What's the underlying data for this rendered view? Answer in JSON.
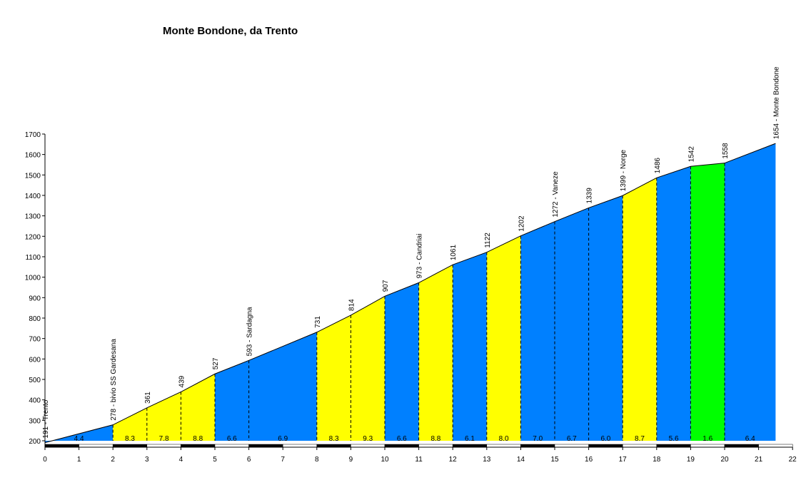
{
  "chart_data": {
    "type": "area",
    "title": "Monte Bondone, da Trento",
    "xlabel": "",
    "ylabel": "",
    "xlim": [
      0,
      22
    ],
    "ylim": [
      200,
      1700
    ],
    "x_ticks": [
      0,
      1,
      2,
      3,
      4,
      5,
      6,
      7,
      8,
      9,
      10,
      11,
      12,
      13,
      14,
      15,
      16,
      17,
      18,
      19,
      20,
      21,
      22
    ],
    "y_ticks": [
      200,
      300,
      400,
      500,
      600,
      700,
      800,
      900,
      1000,
      1100,
      1200,
      1300,
      1400,
      1500,
      1600,
      1700
    ],
    "grid": false,
    "colors": {
      "blue": "#0080ff",
      "yellow": "#ffff00",
      "green": "#00ff00",
      "line": "#000000"
    },
    "profile": [
      {
        "km": 0,
        "alt": 191
      },
      {
        "km": 2,
        "alt": 278
      },
      {
        "km": 3,
        "alt": 361
      },
      {
        "km": 4,
        "alt": 439
      },
      {
        "km": 5,
        "alt": 527
      },
      {
        "km": 6,
        "alt": 593
      },
      {
        "km": 8,
        "alt": 731
      },
      {
        "km": 9,
        "alt": 814
      },
      {
        "km": 10,
        "alt": 907
      },
      {
        "km": 11,
        "alt": 973
      },
      {
        "km": 12,
        "alt": 1061
      },
      {
        "km": 13,
        "alt": 1122
      },
      {
        "km": 14,
        "alt": 1202
      },
      {
        "km": 15,
        "alt": 1272
      },
      {
        "km": 16,
        "alt": 1339
      },
      {
        "km": 17,
        "alt": 1399
      },
      {
        "km": 18,
        "alt": 1486
      },
      {
        "km": 19,
        "alt": 1542
      },
      {
        "km": 20,
        "alt": 1558
      },
      {
        "km": 21.5,
        "alt": 1654
      }
    ],
    "point_labels": [
      {
        "km": 0,
        "label": "191 - Trento"
      },
      {
        "km": 2,
        "label": "278 - bivio  SS  Gardesana"
      },
      {
        "km": 3,
        "label": "361"
      },
      {
        "km": 4,
        "label": "439"
      },
      {
        "km": 5,
        "label": "527"
      },
      {
        "km": 6,
        "label": "593 - Sardagna"
      },
      {
        "km": 8,
        "label": "731"
      },
      {
        "km": 9,
        "label": "814"
      },
      {
        "km": 10,
        "label": "907"
      },
      {
        "km": 11,
        "label": "973 - Candriai"
      },
      {
        "km": 12,
        "label": "1061"
      },
      {
        "km": 13,
        "label": "1122"
      },
      {
        "km": 14,
        "label": "1202"
      },
      {
        "km": 15,
        "label": "1272 - Vaneze"
      },
      {
        "km": 16,
        "label": "1339"
      },
      {
        "km": 17,
        "label": "1399 - Norge"
      },
      {
        "km": 18,
        "label": "1486"
      },
      {
        "km": 19,
        "label": "1542"
      },
      {
        "km": 20,
        "label": "1558"
      },
      {
        "km": 21.5,
        "label": "1654 - Monte Bondone"
      }
    ],
    "segments": [
      {
        "from": 0,
        "to": 2,
        "gradient": "4.4",
        "color": "blue"
      },
      {
        "from": 2,
        "to": 3,
        "gradient": "8.3",
        "color": "yellow"
      },
      {
        "from": 3,
        "to": 4,
        "gradient": "7.8",
        "color": "yellow"
      },
      {
        "from": 4,
        "to": 5,
        "gradient": "8.8",
        "color": "yellow"
      },
      {
        "from": 5,
        "to": 6,
        "gradient": "6.6",
        "color": "blue"
      },
      {
        "from": 6,
        "to": 8,
        "gradient": "6.9",
        "color": "blue"
      },
      {
        "from": 8,
        "to": 9,
        "gradient": "8.3",
        "color": "yellow"
      },
      {
        "from": 9,
        "to": 10,
        "gradient": "9.3",
        "color": "yellow"
      },
      {
        "from": 10,
        "to": 11,
        "gradient": "6.6",
        "color": "blue"
      },
      {
        "from": 11,
        "to": 12,
        "gradient": "8.8",
        "color": "yellow"
      },
      {
        "from": 12,
        "to": 13,
        "gradient": "6.1",
        "color": "blue"
      },
      {
        "from": 13,
        "to": 14,
        "gradient": "8.0",
        "color": "yellow"
      },
      {
        "from": 14,
        "to": 15,
        "gradient": "7.0",
        "color": "blue"
      },
      {
        "from": 15,
        "to": 16,
        "gradient": "6.7",
        "color": "blue"
      },
      {
        "from": 16,
        "to": 17,
        "gradient": "6.0",
        "color": "blue"
      },
      {
        "from": 17,
        "to": 18,
        "gradient": "8.7",
        "color": "yellow"
      },
      {
        "from": 18,
        "to": 19,
        "gradient": "5.6",
        "color": "blue"
      },
      {
        "from": 19,
        "to": 20,
        "gradient": "1.6",
        "color": "green"
      },
      {
        "from": 20,
        "to": 21.5,
        "gradient": "6.4",
        "color": "blue"
      }
    ]
  }
}
